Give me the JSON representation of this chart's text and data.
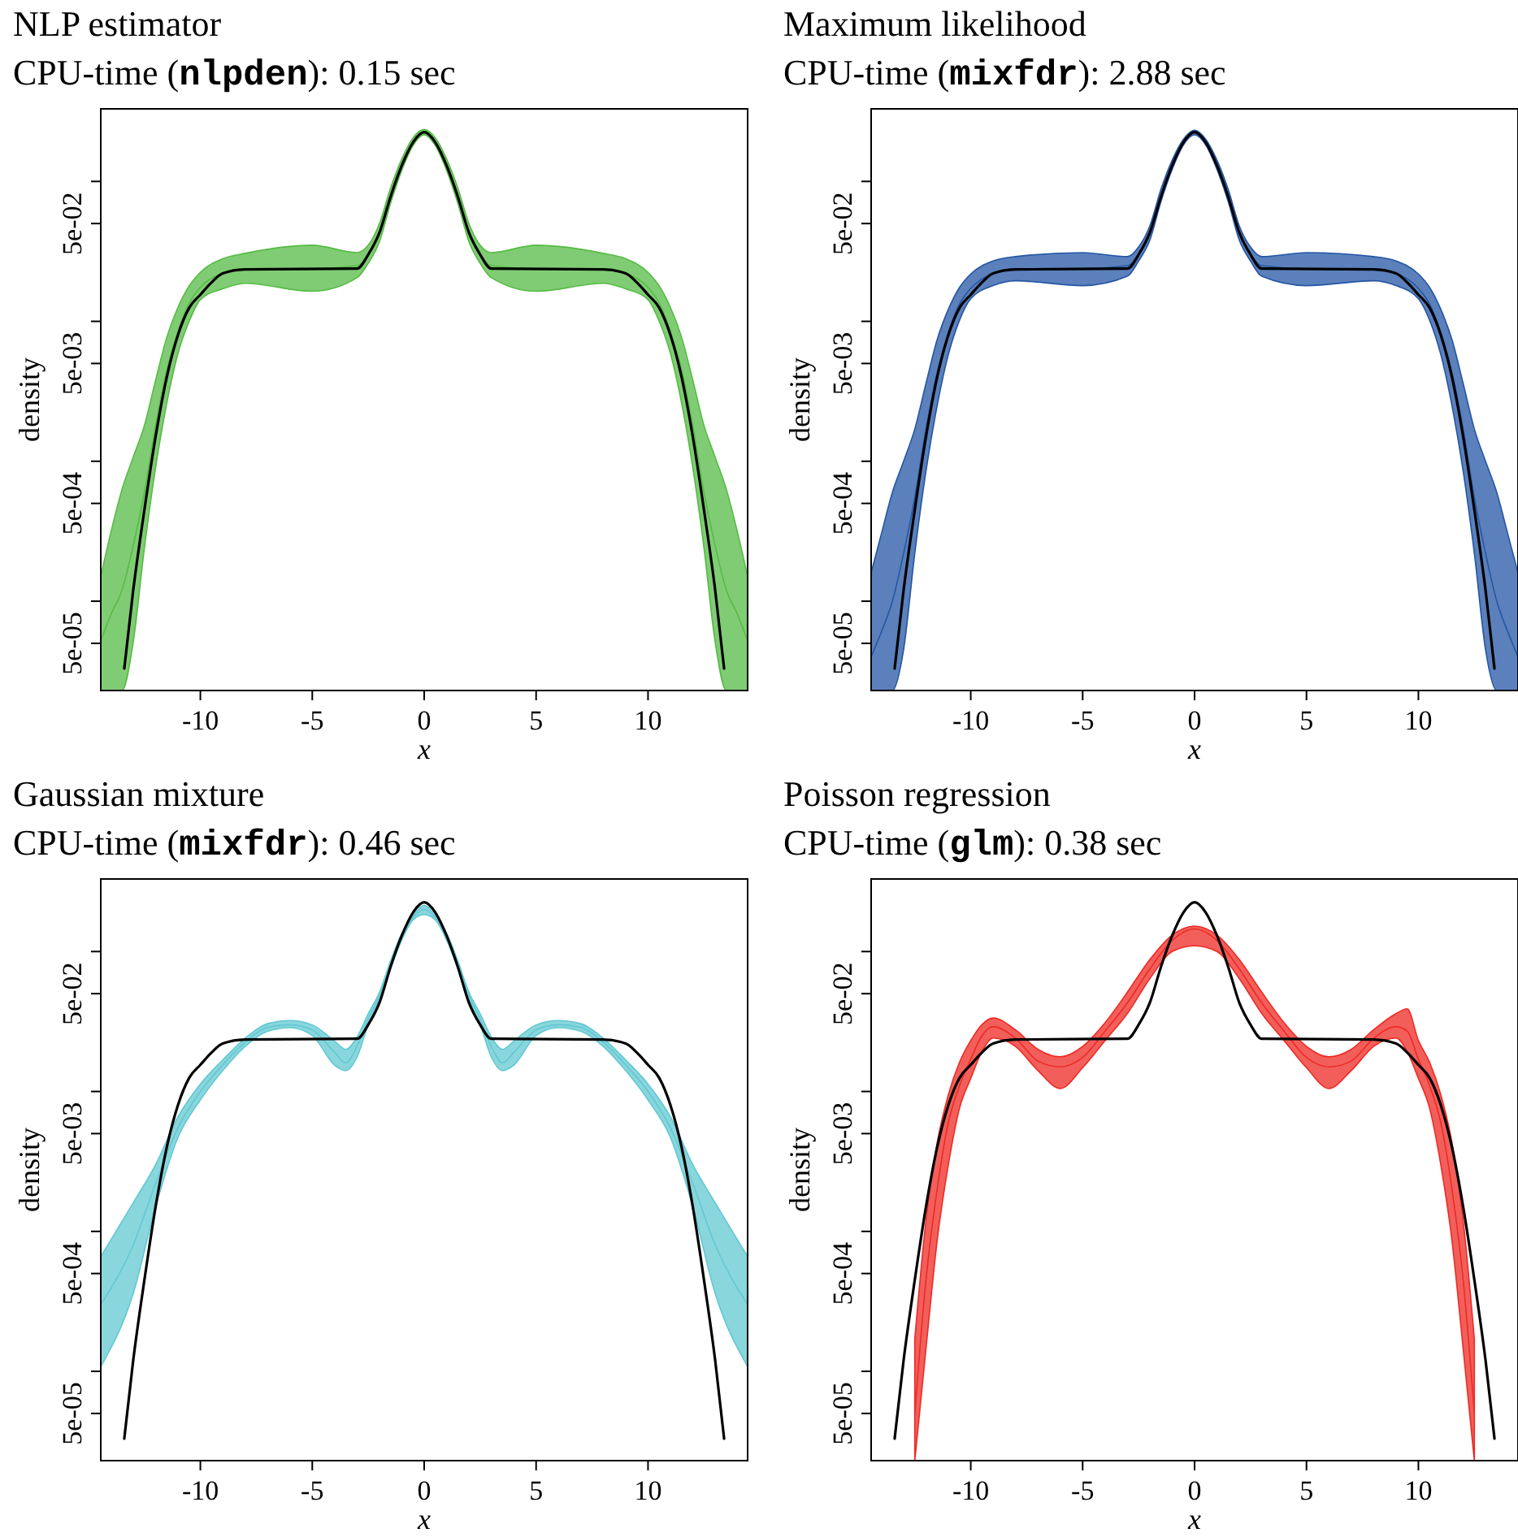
{
  "chart_data": [
    {
      "type": "line",
      "title": "NLP estimator",
      "subtitle": "CPU-time (nlpden): 0.15 sec",
      "xlabel": "x",
      "ylabel": "density",
      "log": "y",
      "xlim": [
        -14.45,
        14.45
      ],
      "xticks": [
        -10,
        -5,
        0,
        5,
        10
      ],
      "ylim": [
        2.3e-05,
        0.33
      ],
      "yticks": [
        {
          "value": 0.1,
          "label": null
        },
        {
          "value": 0.05,
          "label": "5e-02"
        },
        {
          "value": 0.01,
          "label": null
        },
        {
          "value": 0.005,
          "label": "5e-03"
        },
        {
          "value": 0.001,
          "label": null
        },
        {
          "value": 0.0005,
          "label": "5e-04"
        },
        {
          "value": 0.0001,
          "label": null
        },
        {
          "value": 5e-05,
          "label": "5e-05"
        }
      ],
      "series": [
        {
          "color": "#56bb45",
          "x": [
            -14.45,
            -14,
            -13.5,
            -13,
            -12.5,
            -12,
            -11.5,
            -11,
            -10.5,
            -10,
            -9,
            -8,
            -5,
            -3,
            -2.5,
            -2,
            -1.5,
            -1,
            -0.5,
            0,
            0.5,
            1,
            1.5,
            2,
            2.5,
            3,
            5,
            8,
            9,
            10,
            10.5,
            11,
            11.5,
            12,
            12.5,
            13,
            13.5,
            14,
            14.45
          ],
          "values": [
            5.2e-05,
            8e-05,
            0.00012,
            0.00025,
            0.0006,
            0.0018,
            0.0045,
            0.0085,
            0.0135,
            0.0175,
            0.022,
            0.0238,
            0.0238,
            0.025,
            0.03,
            0.043,
            0.078,
            0.13,
            0.19,
            0.225,
            0.19,
            0.13,
            0.078,
            0.043,
            0.03,
            0.025,
            0.0238,
            0.0238,
            0.022,
            0.0175,
            0.0135,
            0.0085,
            0.0045,
            0.0018,
            0.0006,
            0.00025,
            0.00012,
            8e-05,
            5.2e-05
          ],
          "lower": [
            2.3e-05,
            2.3e-05,
            2.3e-05,
            5.1e-05,
            0.00024,
            0.0009,
            0.0026,
            0.0059,
            0.01,
            0.0143,
            0.0171,
            0.0187,
            0.0164,
            0.0205,
            0.026,
            0.037,
            0.07,
            0.12,
            0.18,
            0.215,
            0.18,
            0.12,
            0.07,
            0.037,
            0.026,
            0.0205,
            0.0164,
            0.0187,
            0.0171,
            0.0143,
            0.01,
            0.0059,
            0.0026,
            0.0009,
            0.00024,
            5.1e-05,
            2.3e-05,
            2.3e-05,
            2.3e-05
          ],
          "upper": [
            0.00015,
            0.00031,
            0.00063,
            0.00107,
            0.0018,
            0.0038,
            0.0077,
            0.0126,
            0.0179,
            0.0224,
            0.028,
            0.0306,
            0.035,
            0.031,
            0.035,
            0.05,
            0.09,
            0.145,
            0.205,
            0.235,
            0.205,
            0.145,
            0.09,
            0.05,
            0.035,
            0.031,
            0.035,
            0.0306,
            0.028,
            0.0224,
            0.0179,
            0.0126,
            0.0077,
            0.0038,
            0.0018,
            0.00107,
            0.00063,
            0.00031,
            0.00015
          ]
        },
        {
          "color": "#000000",
          "x": [
            -13.4,
            -13,
            -12.5,
            -12,
            -11.5,
            -11,
            -10.5,
            -10,
            -9.5,
            -9,
            -8,
            -3,
            -2.5,
            -2,
            -1.5,
            -1,
            -0.5,
            0,
            0.5,
            1,
            1.5,
            2,
            2.5,
            3,
            8,
            9,
            9.5,
            10,
            10.5,
            11,
            11.5,
            12,
            12.5,
            13,
            13.4
          ],
          "values": [
            3.3e-05,
            0.00012,
            0.00045,
            0.0015,
            0.004,
            0.008,
            0.0125,
            0.0155,
            0.019,
            0.022,
            0.0235,
            0.0238,
            0.03,
            0.043,
            0.078,
            0.13,
            0.19,
            0.225,
            0.19,
            0.13,
            0.078,
            0.043,
            0.03,
            0.0238,
            0.0235,
            0.022,
            0.019,
            0.0155,
            0.0125,
            0.008,
            0.004,
            0.0015,
            0.00045,
            0.00012,
            3.3e-05
          ]
        }
      ]
    },
    {
      "type": "line",
      "title": "Maximum likelihood",
      "subtitle": "CPU-time (mixfdr): 2.88 sec",
      "xlabel": "x",
      "ylabel": "density",
      "log": "y",
      "xlim": [
        -14.45,
        14.45
      ],
      "xticks": [
        -10,
        -5,
        0,
        5,
        10
      ],
      "ylim": [
        2.3e-05,
        0.33
      ],
      "yticks": [
        {
          "value": 0.1,
          "label": null
        },
        {
          "value": 0.05,
          "label": "5e-02"
        },
        {
          "value": 0.01,
          "label": null
        },
        {
          "value": 0.005,
          "label": "5e-03"
        },
        {
          "value": 0.001,
          "label": null
        },
        {
          "value": 0.0005,
          "label": "5e-04"
        },
        {
          "value": 0.0001,
          "label": null
        },
        {
          "value": 5e-05,
          "label": "5e-05"
        }
      ],
      "series": [
        {
          "color": "#2456a4",
          "x": [
            -14.45,
            -14,
            -13.5,
            -13,
            -12.5,
            -12,
            -11.5,
            -11,
            -10.5,
            -10,
            -9,
            -8,
            -5,
            -3,
            -2.5,
            -2,
            -1.5,
            -1,
            -0.5,
            0,
            0.5,
            1,
            1.5,
            2,
            2.5,
            3,
            5,
            8,
            9,
            10,
            10.5,
            11,
            11.5,
            12,
            12.5,
            13,
            13.5,
            14,
            14.45
          ],
          "values": [
            4e-05,
            6e-05,
            0.0001,
            0.00022,
            0.00055,
            0.0017,
            0.0043,
            0.0083,
            0.0133,
            0.0172,
            0.022,
            0.0238,
            0.0238,
            0.025,
            0.03,
            0.043,
            0.078,
            0.13,
            0.19,
            0.225,
            0.19,
            0.13,
            0.078,
            0.043,
            0.03,
            0.025,
            0.0238,
            0.0238,
            0.022,
            0.0172,
            0.0133,
            0.0083,
            0.0043,
            0.0017,
            0.00055,
            0.00022,
            0.0001,
            6e-05,
            4e-05
          ],
          "lower": [
            2.3e-05,
            2.3e-05,
            2.3e-05,
            4.5e-05,
            0.00022,
            0.00085,
            0.0025,
            0.0058,
            0.0102,
            0.0145,
            0.018,
            0.0195,
            0.018,
            0.021,
            0.027,
            0.038,
            0.072,
            0.122,
            0.182,
            0.215,
            0.182,
            0.122,
            0.072,
            0.038,
            0.027,
            0.021,
            0.018,
            0.0195,
            0.018,
            0.0145,
            0.0102,
            0.0058,
            0.0025,
            0.00085,
            0.00022,
            4.5e-05,
            2.3e-05,
            2.3e-05,
            2.3e-05
          ],
          "upper": [
            0.00016,
            0.0003,
            0.0006,
            0.001,
            0.0017,
            0.0036,
            0.0074,
            0.0122,
            0.0175,
            0.0218,
            0.027,
            0.029,
            0.031,
            0.029,
            0.034,
            0.048,
            0.088,
            0.142,
            0.2,
            0.232,
            0.2,
            0.142,
            0.088,
            0.048,
            0.034,
            0.029,
            0.031,
            0.029,
            0.027,
            0.0218,
            0.0175,
            0.0122,
            0.0074,
            0.0036,
            0.0017,
            0.001,
            0.0006,
            0.0003,
            0.00016
          ]
        },
        {
          "color": "#000000",
          "x": [
            -13.4,
            -13,
            -12.5,
            -12,
            -11.5,
            -11,
            -10.5,
            -10,
            -9.5,
            -9,
            -8,
            -3,
            -2.5,
            -2,
            -1.5,
            -1,
            -0.5,
            0,
            0.5,
            1,
            1.5,
            2,
            2.5,
            3,
            8,
            9,
            9.5,
            10,
            10.5,
            11,
            11.5,
            12,
            12.5,
            13,
            13.4
          ],
          "values": [
            3.3e-05,
            0.00012,
            0.00045,
            0.0015,
            0.004,
            0.008,
            0.0125,
            0.0155,
            0.019,
            0.022,
            0.0235,
            0.0238,
            0.03,
            0.043,
            0.078,
            0.13,
            0.19,
            0.225,
            0.19,
            0.13,
            0.078,
            0.043,
            0.03,
            0.0238,
            0.0235,
            0.022,
            0.019,
            0.0155,
            0.0125,
            0.008,
            0.004,
            0.0015,
            0.00045,
            0.00012,
            3.3e-05
          ]
        }
      ]
    },
    {
      "type": "line",
      "title": "Gaussian mixture",
      "subtitle": "CPU-time (mixfdr): 0.46 sec",
      "xlabel": "x",
      "ylabel": "density",
      "log": "y",
      "xlim": [
        -14.45,
        14.45
      ],
      "xticks": [
        -10,
        -5,
        0,
        5,
        10
      ],
      "ylim": [
        2.3e-05,
        0.33
      ],
      "yticks": [
        {
          "value": 0.1,
          "label": null
        },
        {
          "value": 0.05,
          "label": "5e-02"
        },
        {
          "value": 0.01,
          "label": null
        },
        {
          "value": 0.005,
          "label": "5e-03"
        },
        {
          "value": 0.001,
          "label": null
        },
        {
          "value": 0.0005,
          "label": "5e-04"
        },
        {
          "value": 0.0001,
          "label": null
        },
        {
          "value": 5e-05,
          "label": "5e-05"
        }
      ],
      "series": [
        {
          "color": "#62c8d2",
          "x": [
            -14.45,
            -13,
            -12,
            -11,
            -10,
            -9,
            -8,
            -7,
            -6,
            -5,
            -4,
            -3.5,
            -3,
            -2.5,
            -2,
            -1.5,
            -1,
            -0.5,
            0,
            0.5,
            1,
            1.5,
            2,
            2.5,
            3,
            3.5,
            4,
            5,
            6,
            7,
            8,
            9,
            10,
            11,
            12,
            13,
            14.45
          ],
          "values": [
            0.0003,
            0.0008,
            0.0022,
            0.0055,
            0.01,
            0.0155,
            0.0225,
            0.0287,
            0.03,
            0.0275,
            0.019,
            0.016,
            0.021,
            0.033,
            0.048,
            0.08,
            0.128,
            0.174,
            0.2,
            0.174,
            0.128,
            0.08,
            0.048,
            0.033,
            0.021,
            0.016,
            0.019,
            0.0275,
            0.03,
            0.0287,
            0.0225,
            0.0155,
            0.01,
            0.0055,
            0.0022,
            0.0008,
            0.0003
          ],
          "lower": [
            0.000108,
            0.00036,
            0.0015,
            0.0047,
            0.0087,
            0.0141,
            0.021,
            0.0269,
            0.0286,
            0.0251,
            0.0154,
            0.0141,
            0.0176,
            0.03,
            0.045,
            0.076,
            0.121,
            0.168,
            0.184,
            0.168,
            0.121,
            0.076,
            0.045,
            0.03,
            0.0176,
            0.0141,
            0.0154,
            0.0251,
            0.0286,
            0.0269,
            0.021,
            0.0141,
            0.0087,
            0.0047,
            0.0015,
            0.00036,
            0.000108
          ],
          "upper": [
            0.00066,
            0.0016,
            0.003,
            0.0066,
            0.0113,
            0.0168,
            0.024,
            0.0305,
            0.0321,
            0.0299,
            0.0229,
            0.02,
            0.0245,
            0.036,
            0.051,
            0.086,
            0.135,
            0.18,
            0.214,
            0.18,
            0.135,
            0.086,
            0.051,
            0.036,
            0.0245,
            0.02,
            0.0229,
            0.0299,
            0.0321,
            0.0305,
            0.024,
            0.0168,
            0.0113,
            0.0066,
            0.003,
            0.0016,
            0.00066
          ]
        },
        {
          "color": "#000000",
          "x": [
            -13.4,
            -13,
            -12.5,
            -12,
            -11.5,
            -11,
            -10.5,
            -10,
            -9.5,
            -9,
            -8,
            -3,
            -2.5,
            -2,
            -1.5,
            -1,
            -0.5,
            0,
            0.5,
            1,
            1.5,
            2,
            2.5,
            3,
            8,
            9,
            9.5,
            10,
            10.5,
            11,
            11.5,
            12,
            12.5,
            13,
            13.4
          ],
          "values": [
            3.3e-05,
            0.00012,
            0.00045,
            0.0015,
            0.004,
            0.008,
            0.0125,
            0.0155,
            0.019,
            0.022,
            0.0235,
            0.0238,
            0.03,
            0.043,
            0.078,
            0.13,
            0.19,
            0.225,
            0.19,
            0.13,
            0.078,
            0.043,
            0.03,
            0.0238,
            0.0235,
            0.022,
            0.019,
            0.0155,
            0.0125,
            0.008,
            0.004,
            0.0015,
            0.00045,
            0.00012,
            3.3e-05
          ]
        }
      ]
    },
    {
      "type": "line",
      "title": "Poisson regression",
      "subtitle": "CPU-time (glm): 0.38 sec",
      "xlabel": "x",
      "ylabel": "density",
      "log": "y",
      "xlim": [
        -14.45,
        14.45
      ],
      "xticks": [
        -10,
        -5,
        0,
        5,
        10
      ],
      "ylim": [
        2.3e-05,
        0.33
      ],
      "yticks": [
        {
          "value": 0.1,
          "label": null
        },
        {
          "value": 0.05,
          "label": "5e-02"
        },
        {
          "value": 0.01,
          "label": null
        },
        {
          "value": 0.005,
          "label": "5e-03"
        },
        {
          "value": 0.001,
          "label": null
        },
        {
          "value": 0.0005,
          "label": "5e-04"
        },
        {
          "value": 0.0001,
          "label": null
        },
        {
          "value": 5e-05,
          "label": "5e-05"
        }
      ],
      "series": [
        {
          "color": "#ee2a24",
          "x": [
            -12.5,
            -12,
            -11.5,
            -11,
            -10.5,
            -10,
            -9.5,
            -9,
            -8,
            -7,
            -6,
            -5,
            -4,
            -3,
            -2,
            -1,
            0,
            1,
            2,
            3,
            4,
            5,
            6,
            7,
            8,
            9,
            9.5,
            10,
            10.5,
            11,
            11.5,
            12,
            12.5
          ],
          "values": [
            5e-05,
            0.00045,
            0.002,
            0.006,
            0.011,
            0.017,
            0.025,
            0.029,
            0.024,
            0.0165,
            0.015,
            0.0175,
            0.027,
            0.043,
            0.075,
            0.12,
            0.145,
            0.12,
            0.075,
            0.043,
            0.027,
            0.0175,
            0.015,
            0.0165,
            0.024,
            0.029,
            0.027,
            0.017,
            0.011,
            0.006,
            0.002,
            0.00045,
            5e-05
          ],
          "lower": [
            2.3e-05,
            0.000145,
            0.00086,
            0.003,
            0.0076,
            0.0124,
            0.0193,
            0.0241,
            0.021,
            0.0141,
            0.0105,
            0.0148,
            0.0231,
            0.0361,
            0.064,
            0.1,
            0.11,
            0.1,
            0.064,
            0.0361,
            0.0231,
            0.0148,
            0.0105,
            0.0141,
            0.021,
            0.0241,
            0.0193,
            0.0124,
            0.0076,
            0.003,
            0.00086,
            0.000145,
            2.3e-05
          ],
          "upper": [
            0.00017,
            0.0012,
            0.0043,
            0.0095,
            0.0162,
            0.0231,
            0.03,
            0.0335,
            0.0276,
            0.02,
            0.0177,
            0.021,
            0.031,
            0.0513,
            0.0876,
            0.131,
            0.152,
            0.131,
            0.0876,
            0.0513,
            0.031,
            0.021,
            0.0177,
            0.02,
            0.0276,
            0.036,
            0.039,
            0.0231,
            0.0162,
            0.0095,
            0.0043,
            0.0012,
            0.00017
          ]
        },
        {
          "color": "#000000",
          "x": [
            -13.4,
            -13,
            -12.5,
            -12,
            -11.5,
            -11,
            -10.5,
            -10,
            -9.5,
            -9,
            -8,
            -3,
            -2.5,
            -2,
            -1.5,
            -1,
            -0.5,
            0,
            0.5,
            1,
            1.5,
            2,
            2.5,
            3,
            8,
            9,
            9.5,
            10,
            10.5,
            11,
            11.5,
            12,
            12.5,
            13,
            13.4
          ],
          "values": [
            3.3e-05,
            0.00012,
            0.00045,
            0.0015,
            0.004,
            0.008,
            0.0125,
            0.0155,
            0.019,
            0.022,
            0.0235,
            0.0238,
            0.03,
            0.043,
            0.078,
            0.13,
            0.19,
            0.225,
            0.19,
            0.13,
            0.078,
            0.043,
            0.03,
            0.0238,
            0.0235,
            0.022,
            0.019,
            0.0155,
            0.0125,
            0.008,
            0.004,
            0.0015,
            0.00045,
            0.00012,
            3.3e-05
          ]
        }
      ]
    }
  ]
}
